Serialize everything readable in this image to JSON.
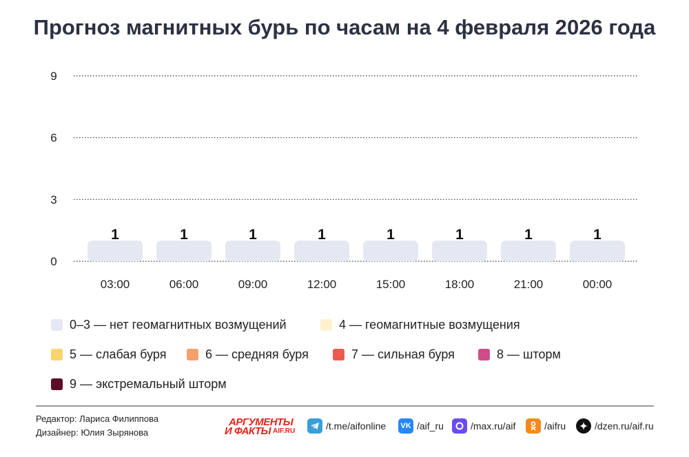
{
  "chart_data": {
    "type": "bar",
    "title": "Прогноз магнитных бурь по часам на 4 февраля 2026 года",
    "categories": [
      "03:00",
      "06:00",
      "09:00",
      "12:00",
      "15:00",
      "18:00",
      "21:00",
      "00:00"
    ],
    "values": [
      1,
      1,
      1,
      1,
      1,
      1,
      1,
      1
    ],
    "data_labels": [
      "1",
      "1",
      "1",
      "1",
      "1",
      "1",
      "1",
      "1"
    ],
    "ylim": [
      0,
      9
    ],
    "yticks": [
      0,
      3,
      6,
      9
    ],
    "ytick_labels": [
      "0",
      "3",
      "6",
      "9"
    ],
    "grid": true,
    "legend_position": "bottom",
    "legend": [
      {
        "label": "0–3 — нет геомагнитных возмущений",
        "color": "#e5e8f2"
      },
      {
        "label": "4 — геомагнитные возмущения",
        "color": "#fdf1cf"
      },
      {
        "label": "5 — слабая буря",
        "color": "#f9d46e"
      },
      {
        "label": "6 — средняя буря",
        "color": "#f6a06c"
      },
      {
        "label": "7 — сильная буря",
        "color": "#ee5a52"
      },
      {
        "label": "8 — шторм",
        "color": "#cc4f8a"
      },
      {
        "label": "9 — экстремальный шторм",
        "color": "#5c0d26"
      }
    ]
  },
  "footer": {
    "editor": "Редактор: Лариса Филиппова",
    "designer": "Дизайнер: Юлия Зырянова",
    "logo_line1": "АРГУМЕНТЫ",
    "logo_line2": "И ФАКТЫ",
    "logo_suffix": "AIF.RU",
    "social": [
      {
        "icon": "telegram-icon",
        "text": "/t.me/aifonline",
        "color": "#3a9fd8"
      },
      {
        "icon": "vk-icon",
        "text": "/aif_ru",
        "color": "#2787f5"
      },
      {
        "icon": "max-icon",
        "text": "/max.ru/aif",
        "color": "#6a4cf0"
      },
      {
        "icon": "ok-icon",
        "text": "/aifru",
        "color": "#f38a1e"
      },
      {
        "icon": "dzen-icon",
        "text": "/dzen.ru/aif.ru",
        "color": "#111111"
      }
    ]
  }
}
